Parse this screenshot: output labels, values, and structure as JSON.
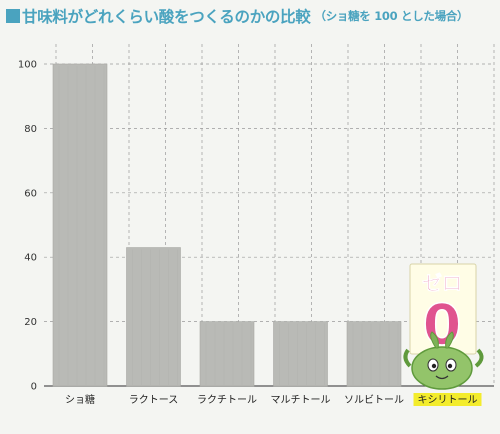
{
  "title": "甘味料がどれくらい酸をつくるのかの比較",
  "subtitle": "（ショ糖を 100 とした場合）",
  "colors": {
    "accent": "#4aa3bf",
    "bar": "#b9bab6",
    "bar_dark": "#a7a8a4",
    "grid": "#9a9a9a",
    "highlight": "#f3ec2c",
    "mascot_green": "#93c46a",
    "zero_text": "#e0538f"
  },
  "chart_data": {
    "type": "bar",
    "categories": [
      "ショ糖",
      "ラクトース",
      "ラクチトール",
      "マルチトール",
      "ソルビトール",
      "キシリトール"
    ],
    "values": [
      100,
      43,
      20,
      20,
      20,
      0
    ],
    "ylim": [
      0,
      100
    ],
    "yticks": [
      0,
      20,
      40,
      60,
      80,
      100
    ],
    "xlabel": "",
    "ylabel": "",
    "grid": true,
    "highlight_category": "キシリトール"
  },
  "annotation": {
    "top_text": "ゼロ",
    "zero_text": "0"
  }
}
